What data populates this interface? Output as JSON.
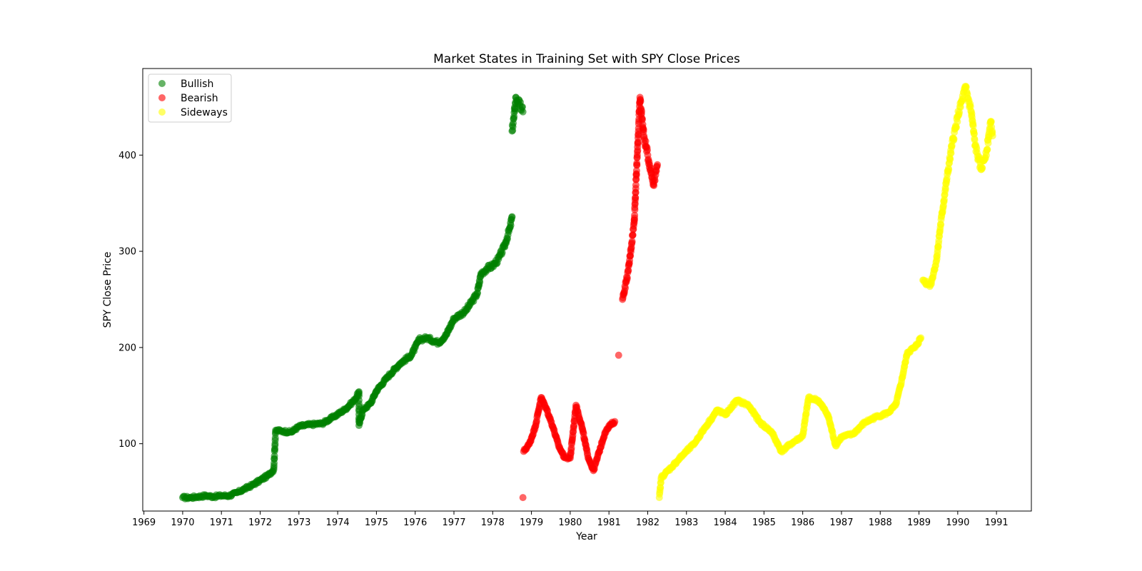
{
  "chart_data": {
    "type": "scatter",
    "title": "Market States in Training Set with SPY Close Prices",
    "xlabel": "Year",
    "ylabel": "SPY Close Price",
    "xlim": [
      1968.97,
      1991.9
    ],
    "ylim": [
      30,
      490
    ],
    "x_ticks": [
      "1969",
      "1970",
      "1971",
      "1972",
      "1973",
      "1974",
      "1975",
      "1976",
      "1977",
      "1978",
      "1979",
      "1980",
      "1981",
      "1982",
      "1983",
      "1984",
      "1985",
      "1986",
      "1987",
      "1988",
      "1989",
      "1990",
      "1991"
    ],
    "y_ticks": [
      100,
      200,
      300,
      400
    ],
    "legend_position": "top-left",
    "grid": false,
    "series": [
      {
        "name": "Bullish",
        "color": "#008000",
        "points": [
          [
            1970.0,
            44
          ],
          [
            1970.2,
            44
          ],
          [
            1970.4,
            45
          ],
          [
            1970.6,
            46
          ],
          [
            1970.8,
            45
          ],
          [
            1971.0,
            46
          ],
          [
            1971.2,
            46
          ],
          [
            1971.4,
            49
          ],
          [
            1971.6,
            53
          ],
          [
            1971.8,
            57
          ],
          [
            1972.0,
            62
          ],
          [
            1972.2,
            67
          ],
          [
            1972.35,
            73
          ],
          [
            1972.4,
            114
          ],
          [
            1972.6,
            113
          ],
          [
            1972.8,
            112
          ],
          [
            1973.0,
            118
          ],
          [
            1973.3,
            120
          ],
          [
            1973.6,
            121
          ],
          [
            1973.9,
            128
          ],
          [
            1974.2,
            136
          ],
          [
            1974.45,
            146
          ],
          [
            1974.55,
            154
          ],
          [
            1974.55,
            119
          ],
          [
            1974.65,
            135
          ],
          [
            1974.85,
            142
          ],
          [
            1975.0,
            155
          ],
          [
            1975.3,
            170
          ],
          [
            1975.6,
            183
          ],
          [
            1975.9,
            192
          ],
          [
            1976.0,
            200
          ],
          [
            1976.1,
            208
          ],
          [
            1976.3,
            210
          ],
          [
            1976.6,
            205
          ],
          [
            1976.8,
            213
          ],
          [
            1977.0,
            230
          ],
          [
            1977.3,
            238
          ],
          [
            1977.6,
            256
          ],
          [
            1977.7,
            277
          ],
          [
            1977.85,
            282
          ],
          [
            1978.0,
            285
          ],
          [
            1978.15,
            292
          ],
          [
            1978.3,
            305
          ],
          [
            1978.45,
            325
          ],
          [
            1978.5,
            336
          ],
          [
            1978.5,
            425
          ],
          [
            1978.55,
            440
          ],
          [
            1978.6,
            460
          ],
          [
            1978.7,
            452
          ],
          [
            1978.78,
            445
          ]
        ]
      },
      {
        "name": "Bearish",
        "color": "#ff0000",
        "points": [
          [
            1978.78,
            44
          ],
          [
            1978.8,
            92
          ],
          [
            1978.95,
            100
          ],
          [
            1979.1,
            118
          ],
          [
            1979.25,
            148
          ],
          [
            1979.4,
            135
          ],
          [
            1979.55,
            118
          ],
          [
            1979.7,
            98
          ],
          [
            1979.85,
            86
          ],
          [
            1980.0,
            85
          ],
          [
            1980.15,
            140
          ],
          [
            1980.3,
            118
          ],
          [
            1980.45,
            88
          ],
          [
            1980.6,
            72
          ],
          [
            1980.75,
            92
          ],
          [
            1980.9,
            112
          ],
          [
            1981.05,
            120
          ],
          [
            1981.15,
            123
          ],
          [
            1981.25,
            192
          ],
          [
            1981.35,
            250
          ],
          [
            1981.5,
            280
          ],
          [
            1981.65,
            330
          ],
          [
            1981.8,
            460
          ],
          [
            1981.9,
            420
          ],
          [
            1982.0,
            400
          ],
          [
            1982.15,
            370
          ],
          [
            1982.25,
            390
          ]
        ]
      },
      {
        "name": "Sideways",
        "color": "#ffff00",
        "points": [
          [
            1982.3,
            44
          ],
          [
            1982.35,
            65
          ],
          [
            1982.6,
            75
          ],
          [
            1982.9,
            88
          ],
          [
            1983.2,
            100
          ],
          [
            1983.5,
            118
          ],
          [
            1983.8,
            135
          ],
          [
            1984.0,
            130
          ],
          [
            1984.3,
            145
          ],
          [
            1984.6,
            140
          ],
          [
            1984.9,
            122
          ],
          [
            1985.2,
            112
          ],
          [
            1985.45,
            92
          ],
          [
            1985.7,
            100
          ],
          [
            1986.0,
            108
          ],
          [
            1986.15,
            148
          ],
          [
            1986.4,
            145
          ],
          [
            1986.65,
            130
          ],
          [
            1986.85,
            98
          ],
          [
            1987.0,
            107
          ],
          [
            1987.3,
            110
          ],
          [
            1987.6,
            122
          ],
          [
            1987.9,
            128
          ],
          [
            1988.2,
            132
          ],
          [
            1988.4,
            140
          ],
          [
            1988.55,
            165
          ],
          [
            1988.7,
            195
          ],
          [
            1988.9,
            200
          ],
          [
            1989.05,
            210
          ],
          [
            1989.1,
            270
          ],
          [
            1989.3,
            265
          ],
          [
            1989.45,
            290
          ],
          [
            1989.55,
            325
          ],
          [
            1989.7,
            370
          ],
          [
            1989.85,
            410
          ],
          [
            1990.0,
            440
          ],
          [
            1990.2,
            470
          ],
          [
            1990.35,
            445
          ],
          [
            1990.45,
            410
          ],
          [
            1990.6,
            385
          ],
          [
            1990.75,
            405
          ],
          [
            1990.85,
            435
          ],
          [
            1990.9,
            420
          ]
        ]
      }
    ]
  }
}
